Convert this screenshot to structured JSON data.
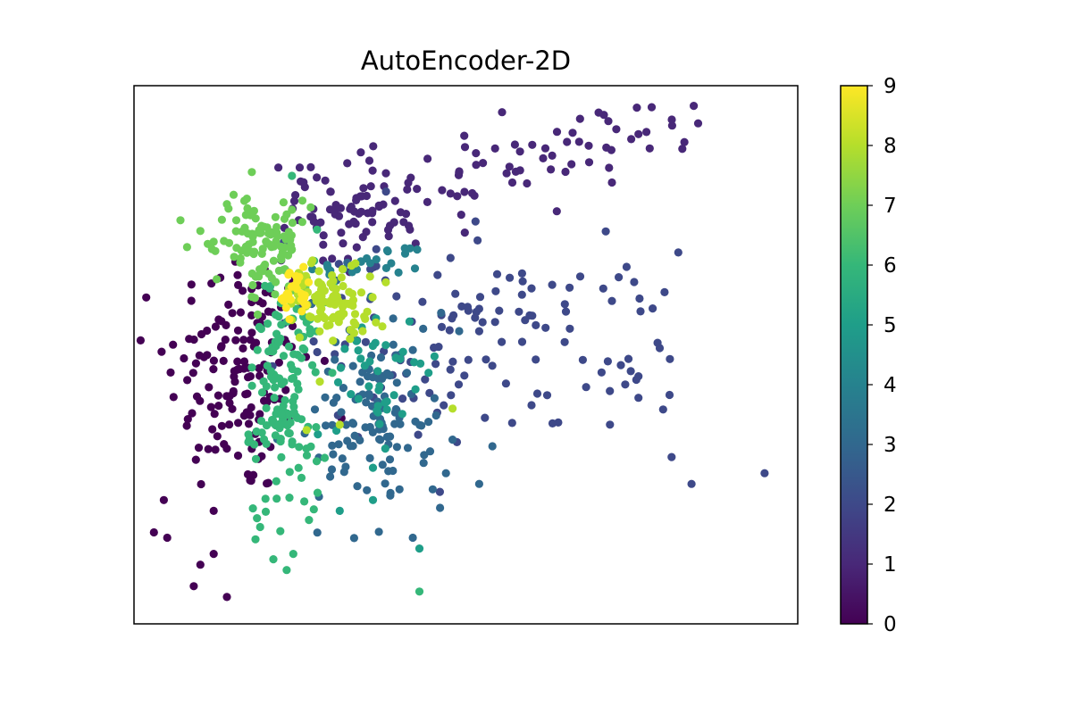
{
  "chart_data": {
    "type": "scatter",
    "title": "AutoEncoder-2D",
    "xlabel": "",
    "ylabel": "",
    "xlim": [
      0,
      100
    ],
    "ylim": [
      0,
      100
    ],
    "axis_ticks_shown": false,
    "grid": false,
    "colorbar": {
      "colormap": "viridis",
      "range": [
        0,
        9
      ],
      "ticks": [
        "0",
        "1",
        "2",
        "3",
        "4",
        "5",
        "6",
        "7",
        "8",
        "9"
      ],
      "stops": [
        "#440154",
        "#482878",
        "#3e4989",
        "#31688e",
        "#26828e",
        "#1f9e89",
        "#35b779",
        "#6ece58",
        "#b5de2b",
        "#fde725"
      ]
    },
    "points_note": "label = digit class, color via viridis",
    "clusters": [
      {
        "label": 0,
        "center": [
          16,
          47
        ],
        "spread": [
          5.5,
          12
        ],
        "n": 150,
        "points": [
          [
            4.5,
            23
          ],
          [
            5,
            16
          ],
          [
            3,
            17
          ],
          [
            9,
            7
          ],
          [
            12,
            13
          ],
          [
            14,
            5
          ],
          [
            10,
            11
          ],
          [
            12,
            21
          ]
        ]
      },
      {
        "label": 1,
        "center": [
          34,
          77
        ],
        "spread": [
          6,
          4.5
        ],
        "n": 140,
        "points": [
          [
            60,
            89
          ],
          [
            70,
            95
          ],
          [
            78,
            96
          ],
          [
            85,
            93
          ],
          [
            72,
            82
          ],
          [
            57,
            82
          ],
          [
            49,
            84
          ],
          [
            65,
            84
          ],
          [
            63,
            87
          ],
          [
            76,
            91
          ]
        ]
      },
      {
        "label": 2,
        "center": [
          46,
          52
        ],
        "spread": [
          12,
          10
        ],
        "n": 130,
        "points": [
          [
            95,
            28
          ],
          [
            84,
            26
          ],
          [
            81,
            31
          ],
          [
            76,
            42
          ],
          [
            72,
            60
          ],
          [
            63,
            63
          ],
          [
            82,
            69
          ],
          [
            76,
            46
          ],
          [
            62,
            55
          ],
          [
            58,
            58
          ]
        ]
      },
      {
        "label": 3,
        "center": [
          35,
          40
        ],
        "spread": [
          4.5,
          9
        ],
        "n": 120,
        "points": [
          [
            45,
            25
          ],
          [
            40,
            25
          ],
          [
            47,
            28
          ],
          [
            42,
            16
          ],
          [
            52,
            26
          ],
          [
            54,
            33
          ]
        ]
      },
      {
        "label": 4,
        "center": [
          41,
          65
        ],
        "spread": [
          3,
          2
        ],
        "n": 25,
        "points": []
      },
      {
        "label": 5,
        "center": [
          37,
          45
        ],
        "spread": [
          4,
          6
        ],
        "n": 40,
        "points": [
          [
            43,
            14
          ],
          [
            36,
            23
          ],
          [
            31,
            21
          ],
          [
            36,
            29
          ]
        ]
      },
      {
        "label": 6,
        "center": [
          23,
          43
        ],
        "spread": [
          2.8,
          13
        ],
        "n": 140,
        "points": [
          [
            23,
            10
          ],
          [
            24,
            13
          ],
          [
            21,
            12
          ],
          [
            19,
            18
          ],
          [
            43,
            6
          ],
          [
            26,
            56
          ],
          [
            30,
            63
          ]
        ]
      },
      {
        "label": 7,
        "center": [
          20,
          70
        ],
        "spread": [
          3.5,
          4.5
        ],
        "n": 110,
        "points": [
          [
            7,
            75
          ],
          [
            8,
            70
          ],
          [
            10,
            73
          ],
          [
            12,
            71
          ],
          [
            17,
            79
          ],
          [
            14,
            78
          ]
        ]
      },
      {
        "label": 8,
        "center": [
          30,
          60
        ],
        "spread": [
          3.5,
          3.5
        ],
        "n": 100,
        "points": [
          [
            48,
            40
          ],
          [
            31,
            37
          ],
          [
            28,
            45
          ],
          [
            26,
            36
          ]
        ]
      },
      {
        "label": 9,
        "center": [
          24,
          62
        ],
        "spread": [
          1.5,
          2.5
        ],
        "n": 28,
        "points": []
      }
    ]
  }
}
